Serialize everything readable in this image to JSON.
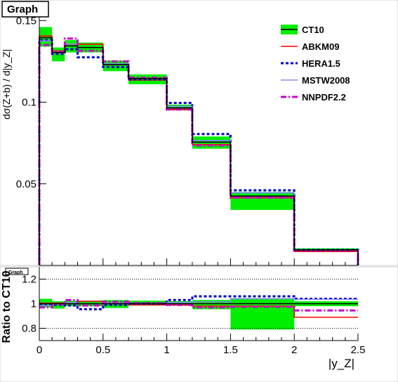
{
  "chart_data": [
    {
      "type": "line",
      "panel": "main",
      "title": "Graph",
      "ylabel": "dσ(Z+b) / d|y_Z|",
      "xlabel": "",
      "xlim": [
        0,
        2.5
      ],
      "ylim": [
        0,
        0.16
      ],
      "y_ticks": [
        0.05,
        0.1,
        0.15
      ],
      "y_tick_labels": [
        "0.05",
        "0.1",
        "0.15"
      ],
      "legend_position": "top-right",
      "bin_edges": [
        0,
        0.1,
        0.2,
        0.3,
        0.5,
        0.7,
        1.0,
        1.2,
        1.5,
        2.0,
        2.5
      ],
      "band": {
        "name": "CT10",
        "color": "#00ee00",
        "lower": [
          0.134,
          0.125,
          0.1305,
          0.1305,
          0.119,
          0.111,
          0.095,
          0.0715,
          0.034,
          0.0085
        ],
        "upper": [
          0.146,
          0.1335,
          0.138,
          0.1365,
          0.1255,
          0.117,
          0.0985,
          0.079,
          0.045,
          0.0105
        ]
      },
      "series": [
        {
          "name": "CT10",
          "color": "#000000",
          "style": "solid",
          "values": [
            0.1395,
            0.1305,
            0.1345,
            0.1335,
            0.123,
            0.1145,
            0.0965,
            0.0755,
            0.0425,
            0.0095
          ]
        },
        {
          "name": "ABKM09",
          "color": "#ff0000",
          "style": "solid",
          "values": [
            0.1405,
            0.1315,
            0.1355,
            0.1355,
            0.123,
            0.1135,
            0.0955,
            0.074,
            0.0415,
            0.0085
          ]
        },
        {
          "name": "HERA1.5",
          "color": "#0000cc",
          "style": "dotted",
          "values": [
            0.138,
            0.1295,
            0.1325,
            0.1275,
            0.1215,
            0.114,
            0.0995,
            0.0805,
            0.046,
            0.0095
          ]
        },
        {
          "name": "MSTW2008",
          "color": "#8888ff",
          "style": "solid",
          "values": [
            0.1375,
            0.131,
            0.1355,
            0.1335,
            0.1235,
            0.1145,
            0.0975,
            0.0765,
            0.0445,
            0.0095
          ]
        },
        {
          "name": "NNPDF2.2",
          "color": "#cc00cc",
          "style": "dashdot",
          "values": [
            0.135,
            0.1305,
            0.139,
            0.1315,
            0.125,
            0.115,
            0.0955,
            0.0735,
            0.0415,
            0.0092
          ]
        }
      ]
    },
    {
      "type": "line",
      "panel": "ratio",
      "title": "Graph",
      "ylabel": "Ratio to CT10",
      "xlabel": "|y_Z|",
      "xlim": [
        0,
        2.5
      ],
      "ylim": [
        0.7,
        1.3
      ],
      "x_ticks": [
        0,
        0.5,
        1,
        1.5,
        2,
        2.5
      ],
      "x_tick_labels": [
        "0",
        "0.5",
        "1",
        "1.5",
        "2",
        "2.5"
      ],
      "y_ticks": [
        0.8,
        1,
        1.2
      ],
      "y_tick_labels": [
        "0.8",
        "1",
        "1.2"
      ],
      "grid_lines": [
        0.8,
        1.2
      ],
      "bin_edges": [
        0,
        0.1,
        0.2,
        0.3,
        0.5,
        0.7,
        1.0,
        1.2,
        1.5,
        2.0,
        2.5
      ],
      "band": {
        "name": "CT10",
        "color": "#00ee00",
        "lower": [
          0.97,
          0.96,
          0.98,
          0.98,
          0.965,
          0.985,
          0.985,
          0.955,
          0.79,
          0.98
        ],
        "upper": [
          1.04,
          1.02,
          1.025,
          1.025,
          1.03,
          1.025,
          1.02,
          1.03,
          1.045,
          1.02
        ]
      },
      "series": [
        {
          "name": "CT10",
          "color": "#000000",
          "style": "solid",
          "values": [
            1,
            1,
            1,
            1,
            1,
            1,
            1,
            1,
            1,
            1
          ]
        },
        {
          "name": "ABKM09",
          "color": "#ff0000",
          "style": "solid",
          "values": [
            1.005,
            1.005,
            1.01,
            1.02,
            1.0,
            0.99,
            0.99,
            0.98,
            0.98,
            0.89
          ]
        },
        {
          "name": "HERA1.5",
          "color": "#0000cc",
          "style": "dotted",
          "values": [
            0.99,
            0.99,
            0.985,
            0.955,
            0.99,
            1.0,
            1.03,
            1.06,
            1.06,
            1.04
          ]
        },
        {
          "name": "MSTW2008",
          "color": "#8888ff",
          "style": "solid",
          "values": [
            0.985,
            1.0,
            1.01,
            1.0,
            1.005,
            1.0,
            1.01,
            1.015,
            1.04,
            1.035
          ]
        },
        {
          "name": "NNPDF2.2",
          "color": "#cc00cc",
          "style": "dashdot",
          "values": [
            0.97,
            0.995,
            1.03,
            0.985,
            1.015,
            1.005,
            0.99,
            0.97,
            0.975,
            0.945
          ]
        }
      ]
    }
  ]
}
